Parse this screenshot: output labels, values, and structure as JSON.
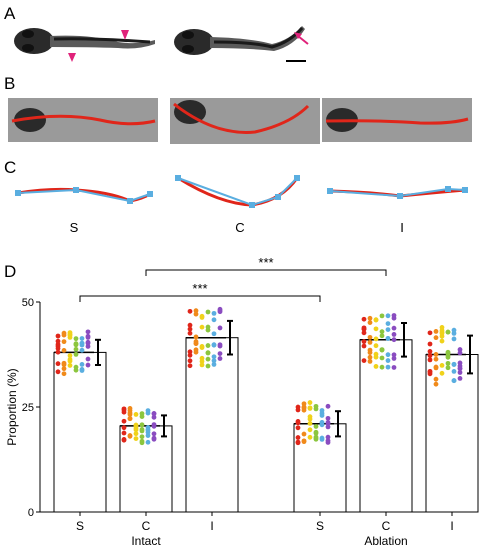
{
  "panels": {
    "a": "A",
    "b": "B",
    "c": "C",
    "d": "D"
  },
  "shape_labels": [
    "S",
    "C",
    "I"
  ],
  "colors": {
    "fish_body": "#2a2a2a",
    "arrowhead": "#e0227a",
    "midline_red": "#e0261a",
    "fit_blue": "#5aaee0",
    "photo_bg": "#9a9a9a",
    "dots": [
      "#e0261a",
      "#f08a1a",
      "#f0d21a",
      "#8cc63e",
      "#5aaee0",
      "#8a4cc0"
    ]
  },
  "chart_data": {
    "type": "bar",
    "ylabel": "Proportion (%)",
    "ylim": [
      0,
      50
    ],
    "yticks": [
      0,
      25,
      50
    ],
    "categories": [
      "S",
      "C",
      "I",
      "S",
      "C",
      "I"
    ],
    "groups": [
      "Intact",
      "Ablation"
    ],
    "series": [
      {
        "values": [
          38,
          20.5,
          41.5,
          21,
          41,
          37.5
        ]
      }
    ],
    "errors": [
      3,
      2.5,
      4,
      3,
      4,
      4.5
    ],
    "significance": [
      {
        "label": "***",
        "from": 0,
        "to": 3
      },
      {
        "label": "***",
        "from": 1,
        "to": 4
      }
    ]
  }
}
